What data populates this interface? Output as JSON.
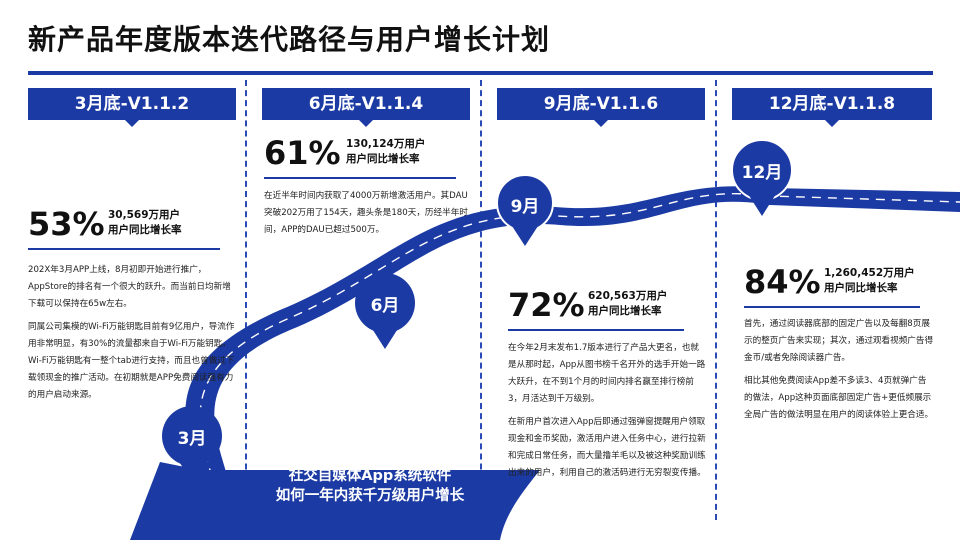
{
  "title": "新产品年度版本迭代路径与用户增长计划",
  "colors": {
    "primary": "#1b3aa3",
    "text": "#1a1a1a"
  },
  "columns": [
    {
      "header": "3月底-V1.1.2",
      "pct": "53%",
      "users": "30,569万用户",
      "growth_label": "用户同比增长率",
      "paragraphs": [
        "202X年3月APP上线，8月初即开始进行推广，AppStore的排名有一个很大的跃升。而当前日均新增下载可以保持在65w左右。",
        "同属公司集模的Wi-Fi万能钥匙目前有9亿用户，导流作用非常明显，有30%的流量都来自于Wi-Fi万能钥匙。 Wi-Fi万能钥匙有一整个tab进行支持，而且也曾做过下载领现金的推广活动。在初期就是APP免费阅读强有力的用户启动来源。"
      ]
    },
    {
      "header": "6月底-V1.1.4",
      "pct": "61%",
      "users": "130,124万用户",
      "growth_label": "用户同比增长率",
      "paragraphs": [
        "在近半年时间内获取了4000万新增激活用户。其DAU突破202万用了154天，趣头条是180天，历经半年时间，APP的DAU已超过500万。"
      ]
    },
    {
      "header": "9月底-V1.1.6",
      "pct": "72%",
      "users": "620,563万用户",
      "growth_label": "用户同比增长率",
      "paragraphs": [
        "在今年2月末发布1.7版本进行了产品大更名，也就是从那时起，App从图书榜千名开外的选手开始一路大跃升，在不到1个月的时间内排名赢至排行榜前3，月活达到千万级别。",
        "在新用户首次进入App后即通过强弹窗提醒用户领取现金和金币奖励，激活用户进入任务中心，进行拉新和完成日常任务，而大量撸羊毛以及被这种奖励训练出来的用户，利用自己的激活码进行无穷裂变传播。"
      ]
    },
    {
      "header": "12月底-V1.1.8",
      "pct": "84%",
      "users": "1,260,452万用户",
      "growth_label": "用户同比增长率",
      "paragraphs": [
        "首先，通过阅读器底部的固定广告以及每翻8页展示的整页广告来实现；其次，通过观看视频广告得金币/或者免除阅读器广告。",
        "相比其他免费阅读App差不多读3、4页就弹广告的做法，App这种页面底部固定广告+更低频展示全局广告的做法明显在用户的阅读体验上更合适。"
      ]
    }
  ],
  "pins": [
    "3月",
    "6月",
    "9月",
    "12月"
  ],
  "bottom": {
    "line1": "社交自媒体App系统软件",
    "line2": "如何一年内获千万级用户增长"
  }
}
